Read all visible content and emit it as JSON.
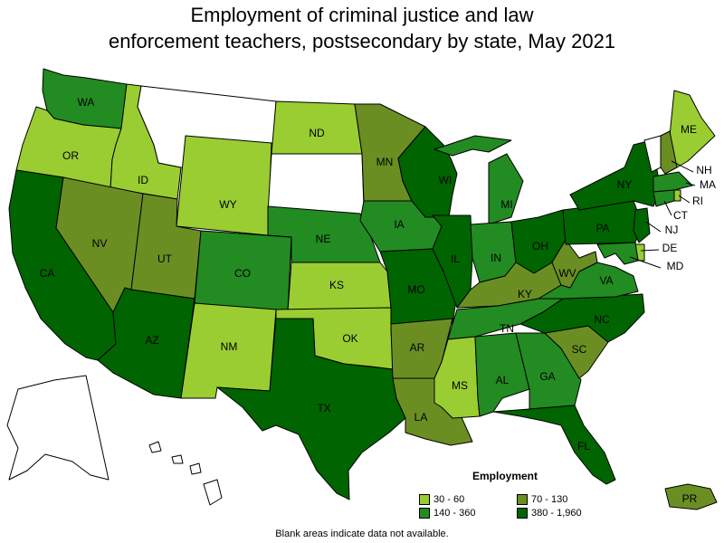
{
  "title_line1": "Employment of criminal justice and law",
  "title_line2": "enforcement teachers, postsecondary by state, May 2021",
  "legend": {
    "title": "Employment",
    "items": [
      {
        "label": "30 - 60",
        "color": "#9ACD32"
      },
      {
        "label": "70 - 130",
        "color": "#6B8E23"
      },
      {
        "label": "140 - 360",
        "color": "#228B22"
      },
      {
        "label": "380 - 1,960",
        "color": "#006400"
      }
    ]
  },
  "note": "Blank areas indicate data not available.",
  "colors": {
    "none": "#FFFFFF"
  },
  "states": [
    {
      "abbr": "WA",
      "class": 2
    },
    {
      "abbr": "OR",
      "class": 0
    },
    {
      "abbr": "CA",
      "class": 3
    },
    {
      "abbr": "ID",
      "class": 0
    },
    {
      "abbr": "NV",
      "class": 1
    },
    {
      "abbr": "MT",
      "class": -1
    },
    {
      "abbr": "WY",
      "class": 0
    },
    {
      "abbr": "UT",
      "class": 1
    },
    {
      "abbr": "AZ",
      "class": 3
    },
    {
      "abbr": "CO",
      "class": 2
    },
    {
      "abbr": "NM",
      "class": 0
    },
    {
      "abbr": "ND",
      "class": 0
    },
    {
      "abbr": "SD",
      "class": -1
    },
    {
      "abbr": "NE",
      "class": 2
    },
    {
      "abbr": "KS",
      "class": 0
    },
    {
      "abbr": "OK",
      "class": 0
    },
    {
      "abbr": "TX",
      "class": 3
    },
    {
      "abbr": "MN",
      "class": 1
    },
    {
      "abbr": "IA",
      "class": 2
    },
    {
      "abbr": "MO",
      "class": 3
    },
    {
      "abbr": "AR",
      "class": 1
    },
    {
      "abbr": "LA",
      "class": 1
    },
    {
      "abbr": "WI",
      "class": 3
    },
    {
      "abbr": "IL",
      "class": 3
    },
    {
      "abbr": "MI",
      "class": 2
    },
    {
      "abbr": "IN",
      "class": 2
    },
    {
      "abbr": "OH",
      "class": 3
    },
    {
      "abbr": "KY",
      "class": 1
    },
    {
      "abbr": "TN",
      "class": 2
    },
    {
      "abbr": "MS",
      "class": 0
    },
    {
      "abbr": "AL",
      "class": 2
    },
    {
      "abbr": "GA",
      "class": 2
    },
    {
      "abbr": "FL",
      "class": 3
    },
    {
      "abbr": "SC",
      "class": 1
    },
    {
      "abbr": "NC",
      "class": 3
    },
    {
      "abbr": "VA",
      "class": 2
    },
    {
      "abbr": "WV",
      "class": 1
    },
    {
      "abbr": "PA",
      "class": 3
    },
    {
      "abbr": "NY",
      "class": 3
    },
    {
      "abbr": "ME",
      "class": 0
    },
    {
      "abbr": "VT",
      "class": -1
    },
    {
      "abbr": "NH",
      "class": 1
    },
    {
      "abbr": "MA",
      "class": 2
    },
    {
      "abbr": "RI",
      "class": 0
    },
    {
      "abbr": "CT",
      "class": 2
    },
    {
      "abbr": "NJ",
      "class": 3
    },
    {
      "abbr": "DE",
      "class": 0
    },
    {
      "abbr": "MD",
      "class": 2
    },
    {
      "abbr": "AK",
      "class": -1
    },
    {
      "abbr": "HI",
      "class": -1
    },
    {
      "abbr": "PR",
      "class": 1
    }
  ]
}
